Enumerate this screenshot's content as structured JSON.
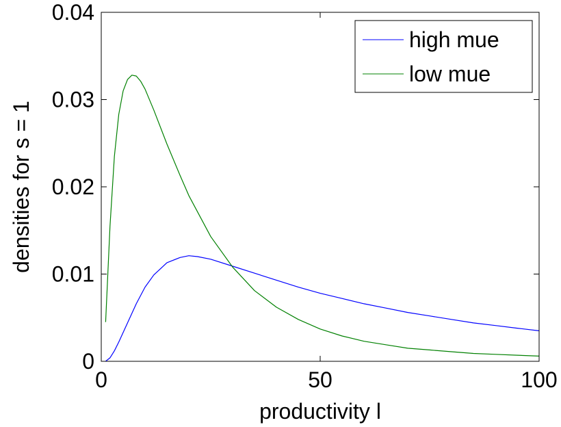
{
  "chart_data": {
    "type": "line",
    "xlabel": "productivity l",
    "ylabel": "densities for s = 1",
    "xlim": [
      0,
      100
    ],
    "ylim": [
      0,
      0.04
    ],
    "xticks": [
      0,
      50,
      100
    ],
    "xtick_labels": [
      "0",
      "50",
      "100"
    ],
    "yticks": [
      0,
      0.01,
      0.02,
      0.03,
      0.04
    ],
    "ytick_labels": [
      "0",
      "0.01",
      "0.02",
      "0.03",
      "0.04"
    ],
    "grid": false,
    "legend_position": "top-right",
    "series": [
      {
        "name": "high mue",
        "color": "#0000ff",
        "x": [
          1,
          2,
          3,
          4,
          5,
          6,
          8,
          10,
          12,
          15,
          18,
          20,
          22,
          25,
          30,
          35,
          40,
          45,
          50,
          55,
          60,
          65,
          70,
          75,
          80,
          85,
          90,
          95,
          100
        ],
        "y": [
          0.0,
          0.0004,
          0.0012,
          0.0022,
          0.0033,
          0.0044,
          0.0066,
          0.0085,
          0.0099,
          0.0113,
          0.0119,
          0.0121,
          0.012,
          0.0117,
          0.0109,
          0.0101,
          0.0093,
          0.0085,
          0.0078,
          0.0072,
          0.0066,
          0.0061,
          0.0056,
          0.0052,
          0.0048,
          0.0044,
          0.0041,
          0.0038,
          0.0035
        ]
      },
      {
        "name": "low mue",
        "color": "#008000",
        "x": [
          1,
          2,
          3,
          4,
          5,
          6,
          7,
          8,
          9,
          10,
          12,
          15,
          18,
          20,
          25,
          30,
          35,
          40,
          45,
          50,
          55,
          60,
          65,
          70,
          75,
          80,
          85,
          90,
          95,
          100
        ],
        "y": [
          0.0045,
          0.0155,
          0.0235,
          0.0283,
          0.031,
          0.0323,
          0.0328,
          0.0327,
          0.0321,
          0.0312,
          0.0288,
          0.0249,
          0.0213,
          0.019,
          0.0143,
          0.0108,
          0.0081,
          0.0062,
          0.0048,
          0.0037,
          0.0029,
          0.0023,
          0.0019,
          0.0015,
          0.0013,
          0.0011,
          0.0009,
          0.0008,
          0.0007,
          0.0006
        ]
      }
    ]
  }
}
